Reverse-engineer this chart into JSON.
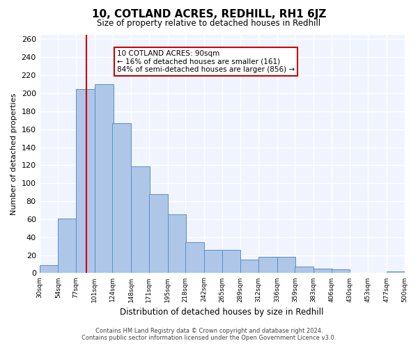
{
  "title": "10, COTLAND ACRES, REDHILL, RH1 6JZ",
  "subtitle": "Size of property relative to detached houses in Redhill",
  "xlabel": "Distribution of detached houses by size in Redhill",
  "ylabel": "Number of detached properties",
  "footer_line1": "Contains HM Land Registry data © Crown copyright and database right 2024.",
  "footer_line2": "Contains public sector information licensed under the Open Government Licence v3.0.",
  "annotation_title": "10 COTLAND ACRES: 90sqm",
  "annotation_line2": "← 16% of detached houses are smaller (161)",
  "annotation_line3": "84% of semi-detached houses are larger (856) →",
  "bar_color": "#aec6e8",
  "bar_edge_color": "#5a8fc2",
  "vline_color": "#cc0000",
  "annotation_box_edge_color": "#cc0000",
  "background_color": "#f0f4ff",
  "grid_color": "#ffffff",
  "bins": [
    30,
    54,
    77,
    101,
    124,
    148,
    171,
    195,
    218,
    242,
    265,
    289,
    312,
    336,
    359,
    383,
    406,
    430,
    453,
    477,
    500
  ],
  "bin_labels": [
    "30sqm",
    "54sqm",
    "77sqm",
    "101sqm",
    "124sqm",
    "148sqm",
    "171sqm",
    "195sqm",
    "218sqm",
    "242sqm",
    "265sqm",
    "289sqm",
    "312sqm",
    "336sqm",
    "359sqm",
    "383sqm",
    "406sqm",
    "430sqm",
    "453sqm",
    "477sqm",
    "500sqm"
  ],
  "values": [
    9,
    61,
    205,
    210,
    167,
    119,
    88,
    65,
    34,
    26,
    26,
    15,
    18,
    18,
    7,
    5,
    4,
    0,
    0,
    2,
    2
  ],
  "vline_x": 90,
  "ylim": [
    0,
    265
  ],
  "yticks": [
    0,
    20,
    40,
    60,
    80,
    100,
    120,
    140,
    160,
    180,
    200,
    220,
    240,
    260
  ]
}
